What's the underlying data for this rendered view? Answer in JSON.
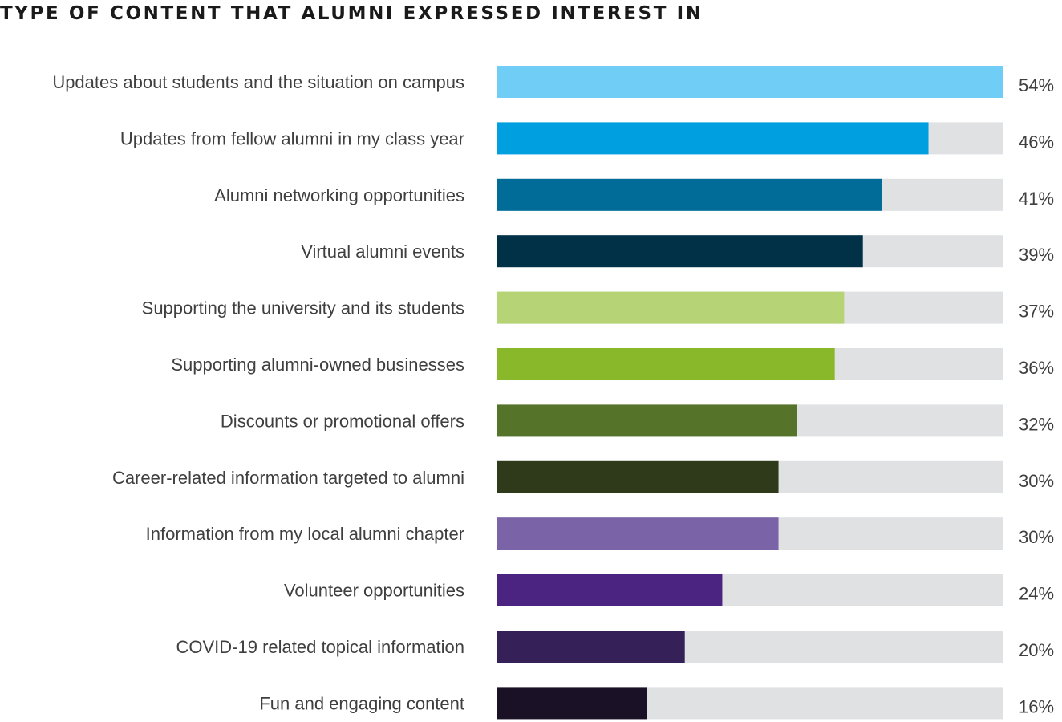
{
  "chart_data": {
    "type": "bar",
    "orientation": "horizontal",
    "title": "TYPE OF CONTENT THAT ALUMNI EXPRESSED INTEREST IN",
    "xlim": [
      0,
      54
    ],
    "grid": false,
    "legend": "none",
    "track_color": "#e0e1e3",
    "value_suffix": "%",
    "categories": [
      "Updates about students and the situation on campus",
      "Updates from fellow alumni in my class year",
      "Alumni networking opportunities",
      "Virtual alumni events",
      "Supporting the university and its students",
      "Supporting alumni-owned businesses",
      "Discounts or promotional offers",
      "Career-related information targeted to alumni",
      "Information from my local alumni chapter",
      "Volunteer opportunities",
      "COVID-19 related topical information",
      "Fun and engaging content"
    ],
    "values": [
      54,
      46,
      41,
      39,
      37,
      36,
      32,
      30,
      30,
      24,
      20,
      16
    ],
    "value_labels": [
      "54%",
      "46%",
      "41%",
      "39%",
      "37%",
      "36%",
      "32%",
      "30%",
      "30%",
      "24%",
      "20%",
      "16%"
    ],
    "colors": [
      "#6fcdf6",
      "#00a0e0",
      "#006c97",
      "#003146",
      "#b6d476",
      "#89b92b",
      "#557329",
      "#2e3a1a",
      "#7b63a8",
      "#4a2480",
      "#352157",
      "#1a1126"
    ]
  }
}
